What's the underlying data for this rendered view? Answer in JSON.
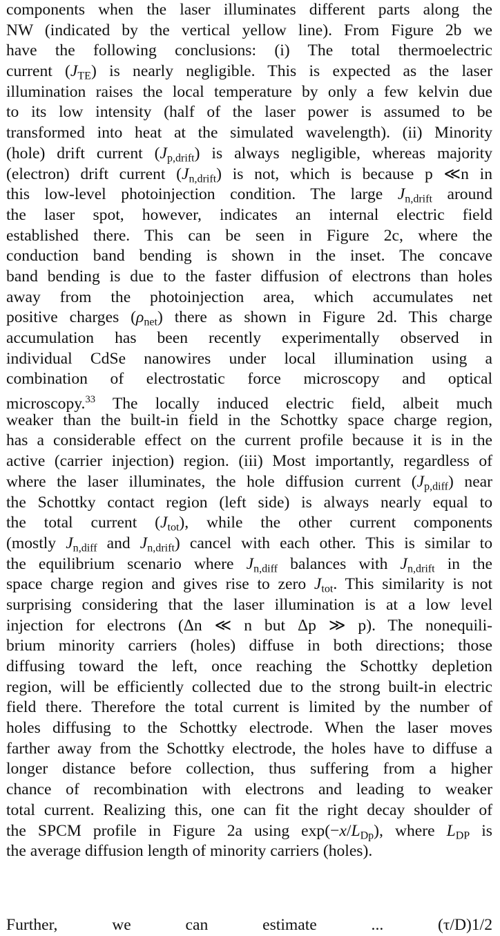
{
  "paragraph": {
    "lines": [
      "components when the laser illuminates different parts along the",
      "NW (indicated by the vertical yellow line). From Figure 2b we",
      "have the following conclusions: (i) The total thermoelectric",
      "current (J_TE) is nearly negligible. This is expected as the laser",
      "illumination raises the local temperature by only a few kelvin due",
      "to its low intensity (half of the laser power is assumed to be",
      "transformed into heat at the simulated wavelength). (ii) Minority",
      "(hole) drift current (J_p,drift) is always negligible, whereas majority",
      "(electron) drift current (J_n,drift) is not, which is because p ≪n in",
      "this low-level photoinjection condition. The large J_n,drift around",
      "the laser spot, however, indicates an internal electric field",
      "established there. This can be seen in Figure 2c, where the",
      "conduction band bending is shown in the inset. The concave",
      "band bending is due to the faster diffusion of electrons than holes",
      "away from the photoinjection area, which accumulates net",
      "positive charges (ρ_net) there as shown in Figure 2d. This charge",
      "accumulation has been recently experimentally observed in",
      "individual CdSe nanowires under local illumination using a",
      "combination of electrostatic force microscopy and optical",
      "microscopy.33 The locally induced electric field, albeit much",
      "weaker than the built-in field in the Schottky space charge region,",
      "has a considerable effect on the current profile because it is in the",
      "active (carrier injection) region. (iii) Most importantly, regardless of",
      "where the laser illuminates, the hole diffusion current (J_p,diff) near",
      "the Schottky contact region (left side) is always nearly equal to",
      "the total current (J_tot), while the other current components",
      "(mostly J_n,diff and J_n,drift) cancel with each other. This is similar to",
      "the equilibrium scenario where J_n,diff balances with J_n,drift in the",
      "space charge region and gives rise to zero J_tot. This similarity is not",
      "surprising considering that the laser illumination is at a low level",
      "injection for electrons (Δn ≪ n but Δp ≫ p). The nonequili-",
      "brium minority carriers (holes) diffuse in both directions; those",
      "diffusing toward the left, once reaching the Schottky depletion",
      "region, will be efficiently collected due to the strong built-in electric",
      "field there. Therefore the total current is limited by the number of",
      "holes diffusing to the Schottky electrode. When the laser moves",
      "farther away from the Schottky electrode, the holes have to diffuse a",
      "longer distance before collection, thus suffering from a higher",
      "chance of recombination with electrons and leading to weaker",
      "total current. Realizing this, one can fit the right decay shoulder of",
      "the SPCM profile in Figure 2a using exp(−x/L_Dp), where L_DP is",
      "the average diffusion length of minority carriers (holes)."
    ],
    "cut_line": "Further, we can estimate ... (τ/D)1/2"
  }
}
